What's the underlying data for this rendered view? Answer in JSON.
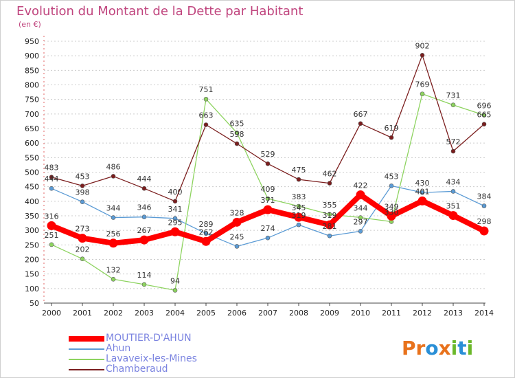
{
  "title": "Evolution du Montant de la Dette par Habitant",
  "unit_label": "(en €)",
  "logo": {
    "text": "Proxiti",
    "letters": [
      "P",
      "r",
      "o",
      "x",
      "i",
      "t",
      "i"
    ],
    "colors": [
      "#e8721c",
      "#e8721c",
      "#2a8fd6",
      "#e8721c",
      "#6bb82a",
      "#2a8fd6",
      "#6bb82a"
    ]
  },
  "chart_data": {
    "type": "line",
    "title": "Evolution du Montant de la Dette par Habitant",
    "ylabel": "(en €)",
    "ylim": [
      50,
      950
    ],
    "yticks": [
      50,
      100,
      150,
      200,
      250,
      300,
      350,
      400,
      450,
      500,
      550,
      600,
      650,
      700,
      750,
      800,
      850,
      900,
      950
    ],
    "categories": [
      "2000",
      "2001",
      "2002",
      "2003",
      "2004",
      "2005",
      "2006",
      "2007",
      "2008",
      "2009",
      "2010",
      "2011",
      "2012",
      "2013",
      "2014"
    ],
    "grid": "horizontal dashed",
    "legend_position": "bottom-left",
    "series": [
      {
        "name": "MOUTIER-D'AHUN",
        "color": "#ff0000",
        "values": [
          316,
          273,
          256,
          267,
          295,
          262,
          328,
          371,
          345,
          319,
          422,
          349,
          401,
          351,
          298
        ],
        "labels": [
          "316",
          "273",
          "256",
          "267",
          "295",
          "262",
          "328",
          "371",
          "345",
          "319",
          "422",
          "349",
          "401",
          "351",
          "298"
        ]
      },
      {
        "name": "Ahun",
        "color": "#5b9bd5",
        "values": [
          444,
          398,
          344,
          346,
          341,
          289,
          245,
          274,
          319,
          281,
          297,
          453,
          430,
          434,
          384
        ],
        "labels": [
          "444",
          "398",
          "344",
          "346",
          "341",
          "289",
          "245",
          "274",
          "319",
          "281",
          "297",
          "453",
          "430",
          "434",
          "384"
        ]
      },
      {
        "name": "Lavaveix-les-Mines",
        "color": "#8dd35f",
        "values": [
          251,
          202,
          132,
          114,
          94,
          751,
          635,
          409,
          383,
          355,
          344,
          330,
          769,
          731,
          696
        ],
        "labels": [
          "251",
          "202",
          "132",
          "114",
          "94",
          "751",
          "635",
          "409",
          "383",
          "355",
          "344",
          "330",
          "769",
          "731",
          "696"
        ]
      },
      {
        "name": "Chamberaud",
        "color": "#7b1e1e",
        "values": [
          483,
          453,
          486,
          444,
          400,
          663,
          598,
          529,
          475,
          462,
          667,
          619,
          902,
          572,
          665
        ],
        "labels": [
          "483",
          "453",
          "486",
          "444",
          "400",
          "663",
          "598",
          "529",
          "475",
          "462",
          "667",
          "619",
          "902",
          "572",
          "665"
        ]
      }
    ]
  }
}
